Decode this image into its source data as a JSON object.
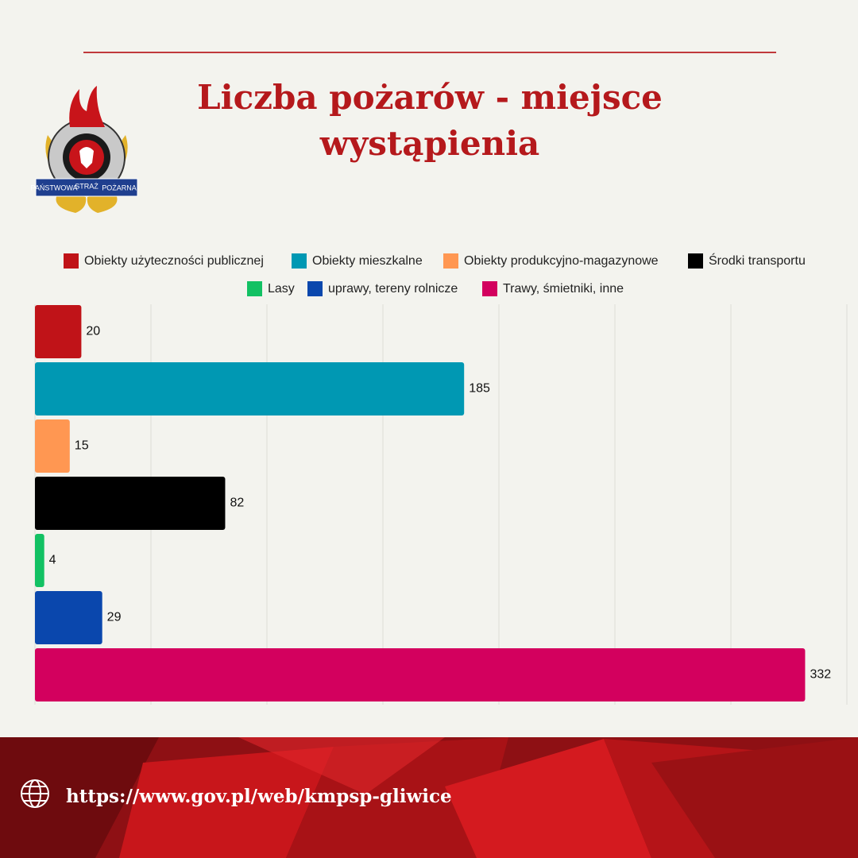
{
  "chart_data": {
    "type": "bar",
    "orientation": "horizontal",
    "title": [
      "Liczba pożarów - miejsce",
      "wystąpienia"
    ],
    "series": [
      {
        "name": "Obiekty użyteczności publicznej",
        "color": "#c01318",
        "values": [
          20
        ]
      },
      {
        "name": "Obiekty mieszkalne",
        "color": "#0098b3",
        "values": [
          185
        ]
      },
      {
        "name": "Obiekty produkcyjno-magazynowe",
        "color": "#ff9752",
        "values": [
          15
        ]
      },
      {
        "name": "Środki transportu",
        "color": "#000000",
        "values": [
          82
        ]
      },
      {
        "name": "Lasy",
        "color": "#12c163",
        "values": [
          4
        ]
      },
      {
        "name": "uprawy, tereny rolnicze",
        "color": "#0a47ad",
        "values": [
          29
        ]
      },
      {
        "name": "Trawy, śmietniki, inne",
        "color": "#d3005e",
        "values": [
          332
        ]
      }
    ],
    "xlim": [
      0,
      350
    ],
    "xticks": [
      0,
      50,
      100,
      150,
      200,
      250,
      300,
      350
    ],
    "grid": true,
    "legend": "top"
  },
  "logo": {
    "text": [
      "PAŃSTWOWA",
      "STRAŻ",
      "POŻARNA"
    ]
  },
  "footer": {
    "url": "https://www.gov.pl/web/kmpsp-gliwice"
  }
}
